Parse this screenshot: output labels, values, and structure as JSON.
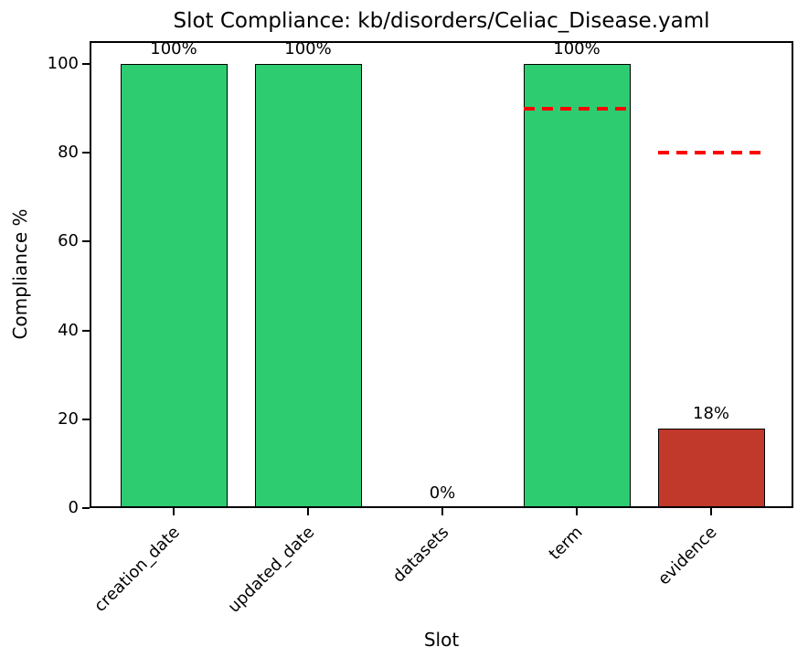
{
  "figure": {
    "background": "#ffffff",
    "text_color": "#000000",
    "spine_color": "#000000"
  },
  "chart_data": {
    "type": "bar",
    "title": "Slot Compliance: kb/disorders/Celiac_Disease.yaml",
    "xlabel": "Slot",
    "ylabel": "Compliance %",
    "categories": [
      "creation_date",
      "updated_date",
      "datasets",
      "term",
      "evidence"
    ],
    "values": [
      100,
      100,
      0,
      100,
      18
    ],
    "value_labels": [
      "100%",
      "100%",
      "0%",
      "100%",
      "18%"
    ],
    "bar_colors": [
      "#2ecc71",
      "#2ecc71",
      "#2ecc71",
      "#2ecc71",
      "#c0392b"
    ],
    "bar_edge_color": "#000000",
    "thresholds": [
      {
        "category": "term",
        "value": 90
      },
      {
        "category": "evidence",
        "value": 80
      }
    ],
    "threshold_color": "#ff0000",
    "threshold_style": "dashed",
    "ylim": [
      0,
      100
    ],
    "yticks": [
      0,
      20,
      40,
      60,
      80,
      100
    ],
    "grid": false,
    "legend": "none"
  }
}
